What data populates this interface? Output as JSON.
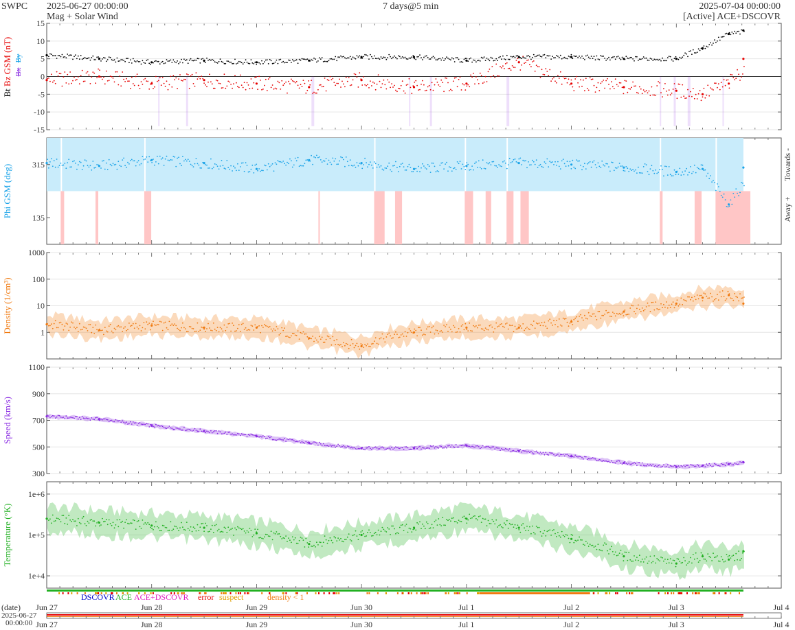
{
  "header": {
    "org": "SWPC",
    "start_time": "2025-06-27 00:00:00",
    "subtitle": "Mag + Solar Wind",
    "range": "7 days@5 min",
    "end_time": "2025-07-04 00:00:00",
    "source": "[Active] ACE+DSCOVR"
  },
  "colors": {
    "bt": "#000000",
    "bz": "#e60000",
    "bx": "#8a2be2",
    "by": "#1aa3e8",
    "phi": "#1aa3e8",
    "towards_fill": "#c9ecfb",
    "away_fill": "#ffc6c6",
    "density": "#f07a10",
    "speed": "#8a2be2",
    "temperature": "#22b022",
    "legend_dscovr": "#0000cc",
    "legend_ace": "#22b022",
    "legend_ace_dscovr": "#e020c0",
    "legend_error": "#e60000",
    "legend_suspect": "#e0a000",
    "legend_density": "#f07a10"
  },
  "legend": {
    "dscovr": "DSCOVR",
    "ace": "ACE",
    "ace_dscovr": "ACE+DSCOVR",
    "error": "error",
    "suspect": "suspect",
    "density": "density < 1"
  },
  "x_axis": {
    "ticks": [
      "Jun 27",
      "Jun 28",
      "Jun 29",
      "Jun 30",
      "Jul 1",
      "Jul 2",
      "Jul 3",
      "Jul 4"
    ],
    "date_label": "(date)",
    "bottom_label_line1": "2025-06-27",
    "bottom_label_line2": "00:00:00"
  },
  "chart_data": [
    {
      "type": "scatter",
      "title": "",
      "ylabel_parts": [
        "Bt",
        "Bz GSM (nT)"
      ],
      "legend_glyphs": [
        "Bx",
        "By"
      ],
      "ylim": [
        -15,
        15
      ],
      "yticks": [
        "15",
        "10",
        "5",
        "0",
        "-5",
        "-10",
        "-15"
      ],
      "x": [
        "2025-06-27",
        "2025-06-27T12",
        "2025-06-28",
        "2025-06-28T12",
        "2025-06-29",
        "2025-06-29T12",
        "2025-06-30",
        "2025-06-30T12",
        "2025-07-01",
        "2025-07-01T12",
        "2025-07-02",
        "2025-07-02T12",
        "2025-07-03",
        "2025-07-03T06",
        "2025-07-03T12",
        "2025-07-03T18"
      ],
      "series": [
        {
          "name": "Bt",
          "values": [
            6,
            5,
            4,
            4.5,
            4,
            4.5,
            5.5,
            5.5,
            4.5,
            5.5,
            5.5,
            5,
            5,
            8,
            12,
            13
          ]
        },
        {
          "name": "Bz GSM",
          "values": [
            -1,
            0,
            -2,
            -1,
            -2,
            -3,
            -1,
            -3,
            -2,
            4,
            -2,
            -3,
            -4,
            -5,
            -2,
            5
          ]
        }
      ]
    },
    {
      "type": "scatter",
      "title": "",
      "ylabel": "Phi GSM (deg)",
      "yticks": [
        "315",
        "135"
      ],
      "right_labels": [
        "Towards -",
        "Away +"
      ],
      "ylim": [
        45,
        405
      ],
      "x": [
        "2025-06-27",
        "2025-06-27T12",
        "2025-06-28",
        "2025-06-28T12",
        "2025-06-29",
        "2025-06-29T12",
        "2025-06-30",
        "2025-06-30T12",
        "2025-07-01",
        "2025-07-01T12",
        "2025-07-02",
        "2025-07-02T12",
        "2025-07-03",
        "2025-07-03T06",
        "2025-07-03T12",
        "2025-07-03T18"
      ],
      "series": [
        {
          "name": "Phi GSM",
          "values": [
            320,
            310,
            330,
            320,
            300,
            330,
            320,
            300,
            310,
            320,
            315,
            305,
            290,
            300,
            180,
            305
          ]
        }
      ]
    },
    {
      "type": "line",
      "title": "",
      "ylabel": "Density (1/cm³)",
      "scale": "log",
      "ylim": [
        0.1,
        1000
      ],
      "yticks": [
        "1000",
        "100",
        "10",
        "1"
      ],
      "x": [
        "2025-06-27",
        "2025-06-27T12",
        "2025-06-28",
        "2025-06-28T12",
        "2025-06-29",
        "2025-06-29T12",
        "2025-06-30",
        "2025-06-30T12",
        "2025-07-01",
        "2025-07-01T12",
        "2025-07-02",
        "2025-07-02T12",
        "2025-07-03",
        "2025-07-03T06",
        "2025-07-03T12",
        "2025-07-03T18"
      ],
      "series": [
        {
          "name": "Density",
          "values": [
            2,
            1.2,
            1.8,
            1.5,
            1.5,
            0.6,
            0.3,
            1,
            1.5,
            1.5,
            2.5,
            6,
            12,
            20,
            25,
            12
          ]
        }
      ]
    },
    {
      "type": "line",
      "title": "",
      "ylabel": "Speed (km/s)",
      "ylim": [
        300,
        1100
      ],
      "yticks": [
        "1100",
        "900",
        "700",
        "500",
        "300"
      ],
      "x": [
        "2025-06-27",
        "2025-06-27T12",
        "2025-06-28",
        "2025-06-28T12",
        "2025-06-29",
        "2025-06-29T12",
        "2025-06-30",
        "2025-06-30T12",
        "2025-07-01",
        "2025-07-01T12",
        "2025-07-02",
        "2025-07-02T12",
        "2025-07-03",
        "2025-07-03T06",
        "2025-07-03T12",
        "2025-07-03T18"
      ],
      "series": [
        {
          "name": "Speed",
          "values": [
            730,
            710,
            660,
            620,
            580,
            530,
            490,
            490,
            510,
            470,
            430,
            380,
            350,
            360,
            370,
            385
          ]
        }
      ]
    },
    {
      "type": "line",
      "title": "",
      "ylabel": "Temperature (°K)",
      "scale": "log",
      "ylim": [
        5000,
        2000000
      ],
      "yticks": [
        "1e+6",
        "1e+5",
        "1e+4"
      ],
      "x": [
        "2025-06-27",
        "2025-06-27T12",
        "2025-06-28",
        "2025-06-28T12",
        "2025-06-29",
        "2025-06-29T12",
        "2025-06-30",
        "2025-06-30T12",
        "2025-07-01",
        "2025-07-01T12",
        "2025-07-02",
        "2025-07-02T12",
        "2025-07-03",
        "2025-07-03T06",
        "2025-07-03T12",
        "2025-07-03T18"
      ],
      "series": [
        {
          "name": "Temperature",
          "values": [
            250000,
            200000,
            170000,
            150000,
            110000,
            60000,
            100000,
            150000,
            250000,
            150000,
            80000,
            30000,
            20000,
            30000,
            25000,
            40000
          ]
        }
      ]
    }
  ]
}
